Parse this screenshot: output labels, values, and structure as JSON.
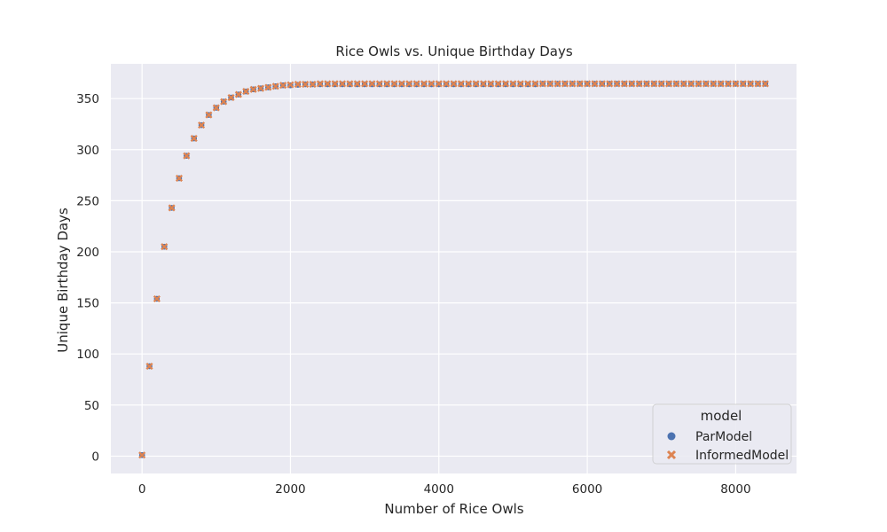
{
  "chart_data": {
    "type": "scatter",
    "title": "Rice Owls vs. Unique Birthday Days",
    "xlabel": "Number of Rice Owls",
    "ylabel": "Unique Birthday Days",
    "xlim": [
      -420,
      8820
    ],
    "ylim": [
      -17,
      384
    ],
    "xticks": [
      0,
      2000,
      4000,
      6000,
      8000
    ],
    "yticks": [
      0,
      50,
      100,
      150,
      200,
      250,
      300,
      350
    ],
    "grid": true,
    "legend": {
      "title": "model",
      "placement": "lower-right"
    },
    "x": [
      0,
      100,
      200,
      300,
      400,
      500,
      600,
      700,
      800,
      900,
      1000,
      1100,
      1200,
      1300,
      1400,
      1500,
      1600,
      1700,
      1800,
      1900,
      2000,
      2100,
      2200,
      2300,
      2400,
      2500,
      2600,
      2700,
      2800,
      2900,
      3000,
      3100,
      3200,
      3300,
      3400,
      3500,
      3600,
      3700,
      3800,
      3900,
      4000,
      4100,
      4200,
      4300,
      4400,
      4500,
      4600,
      4700,
      4800,
      4900,
      5000,
      5100,
      5200,
      5300,
      5400,
      5500,
      5600,
      5700,
      5800,
      5900,
      6000,
      6100,
      6200,
      6300,
      6400,
      6500,
      6600,
      6700,
      6800,
      6900,
      7000,
      7100,
      7200,
      7300,
      7400,
      7500,
      7600,
      7700,
      7800,
      7900,
      8000,
      8100,
      8200,
      8300,
      8400
    ],
    "series": [
      {
        "name": "ParModel",
        "color": "#4c72b0",
        "marker": "circle",
        "values": [
          1,
          88,
          154,
          205,
          243,
          272,
          294,
          311,
          324,
          334,
          341,
          347,
          351,
          354,
          357,
          359,
          360,
          361,
          362,
          363,
          363,
          363.5,
          364,
          364,
          364,
          364,
          364,
          364,
          364,
          364,
          364,
          364,
          364,
          364,
          364,
          364,
          364,
          364,
          364,
          364,
          364,
          364,
          364,
          364,
          364,
          364,
          364,
          364,
          364,
          364,
          364,
          364,
          364,
          364,
          364.5,
          364.5,
          364.5,
          364.5,
          364.5,
          364.5,
          364.5,
          364.5,
          364.5,
          364.5,
          364.5,
          364.5,
          364.5,
          364.5,
          364.5,
          364.5,
          364.5,
          364.5,
          364.5,
          364.5,
          364.5,
          364.5,
          364.5,
          364.5,
          364.5,
          364.5,
          364.5,
          364.5,
          364.5,
          364.5,
          364.5
        ]
      },
      {
        "name": "InformedModel",
        "color": "#dd8452",
        "marker": "x",
        "values": [
          1,
          88,
          154,
          205,
          243,
          272,
          294,
          311,
          324,
          334,
          341,
          347,
          351,
          354,
          357,
          359,
          360,
          361,
          362,
          363,
          363.5,
          364,
          364,
          364,
          364.5,
          364.5,
          364.5,
          364.5,
          364.5,
          364.5,
          364.5,
          364.5,
          364.5,
          364.5,
          364.5,
          364.5,
          364.5,
          364.5,
          364.5,
          364.5,
          364.5,
          364.5,
          364.5,
          364.5,
          364.5,
          364.5,
          364.5,
          364.5,
          364.5,
          364.5,
          364.5,
          364.5,
          364.5,
          364.5,
          364.5,
          364.5,
          364.5,
          364.5,
          364.5,
          364.5,
          364.5,
          364.5,
          364.5,
          364.5,
          364.5,
          364.5,
          364.5,
          364.5,
          364.5,
          364.5,
          364.5,
          364.5,
          364.5,
          364.5,
          364.5,
          364.5,
          364.5,
          364.5,
          364.5,
          364.5,
          364.5,
          364.5,
          364.5,
          364.5,
          364.5
        ]
      }
    ]
  }
}
